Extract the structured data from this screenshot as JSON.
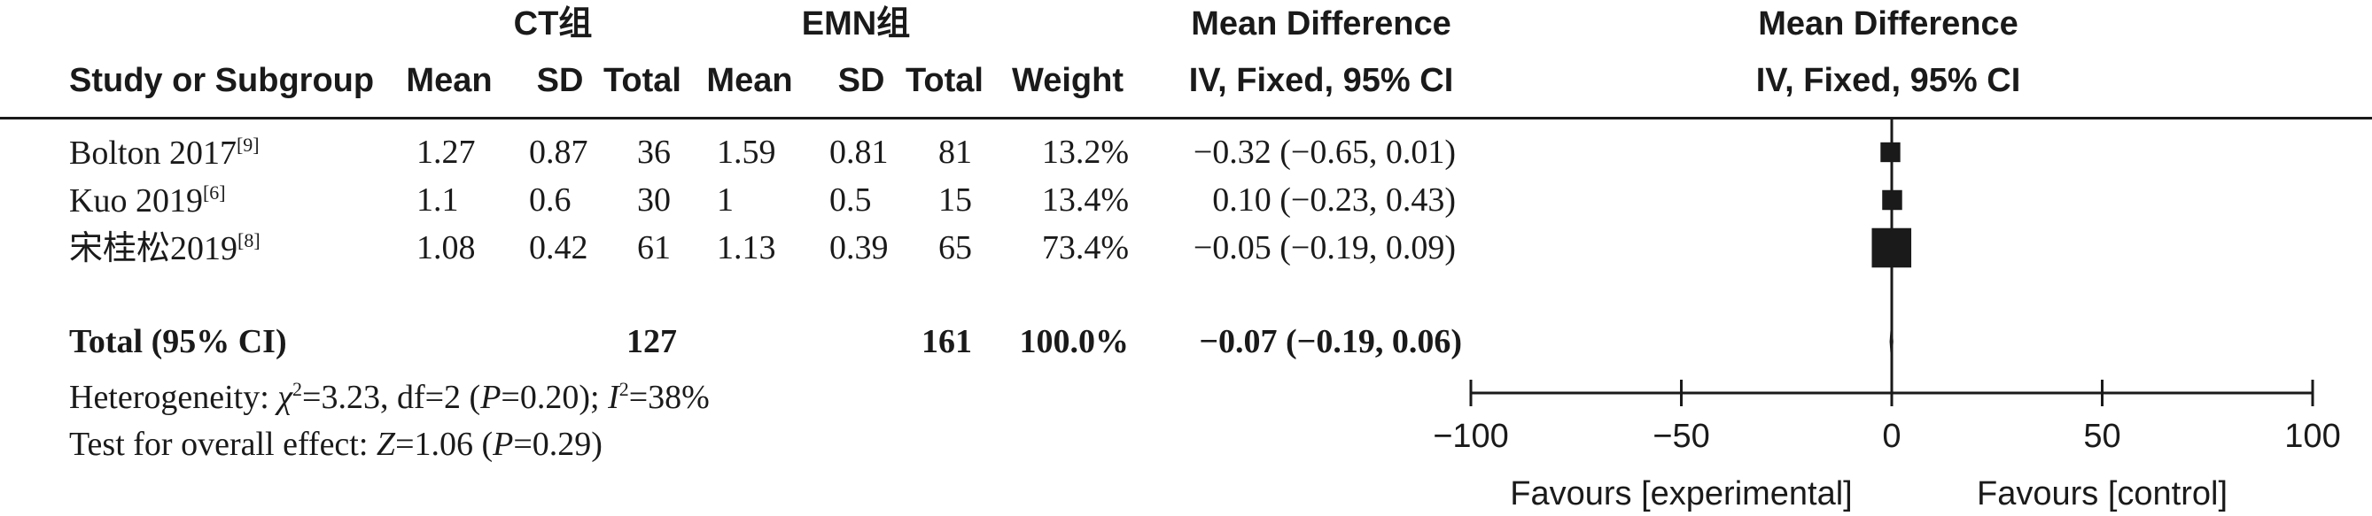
{
  "header": {
    "group1": "CT组",
    "group2": "EMN组",
    "effect_title": "Mean Difference",
    "effect_method": "IV, Fixed, 95% CI",
    "plot_title": "Mean Difference",
    "plot_method": "IV, Fixed, 95% CI",
    "col_study": "Study or Subgroup",
    "col_mean1": "Mean",
    "col_sd1": "SD",
    "col_total1": "Total",
    "col_mean2": "Mean",
    "col_sd2": "SD",
    "col_total2": "Total",
    "col_weight": "Weight"
  },
  "studies": [
    {
      "name": "Bolton 2017",
      "ref": "[9]",
      "mean1": "1.27",
      "sd1": "0.87",
      "total1": "36",
      "mean2": "1.59",
      "sd2": "0.81",
      "total2": "81",
      "weight": "13.2%",
      "ci": "−0.32 (−0.65, 0.01)"
    },
    {
      "name": "Kuo 2019",
      "ref": "[6]",
      "mean1": "1.1",
      "sd1": "0.6",
      "total1": "30",
      "mean2": "1",
      "sd2": "0.5",
      "total2": "15",
      "weight": "13.4%",
      "ci": "0.10 (−0.23, 0.43)"
    },
    {
      "name": "宋桂松2019",
      "ref": "[8]",
      "mean1": "1.08",
      "sd1": "0.42",
      "total1": "61",
      "mean2": "1.13",
      "sd2": "0.39",
      "total2": "65",
      "weight": "73.4%",
      "ci": "−0.05 (−0.19, 0.09)"
    }
  ],
  "total": {
    "label": "Total (95% CI)",
    "total1": "127",
    "total2": "161",
    "weight": "100.0%",
    "ci": "−0.07 (−0.19, 0.06)"
  },
  "heterogeneity": {
    "prefix": "Heterogeneity: ",
    "chi": "χ",
    "chi_sup": "2",
    "chi_rest": "=3.23, df=2 (",
    "p": "P",
    "p_rest": "=0.20); ",
    "i": "I",
    "i_sup": "2",
    "i_rest": "=38%"
  },
  "overall": {
    "prefix": "Test for overall effect: ",
    "z": "Z",
    "z_rest": "=1.06 (",
    "p": "P",
    "p_rest": "=0.29)"
  },
  "chart_data": {
    "type": "forest",
    "xlim": [
      -100,
      100
    ],
    "xticks": [
      -100,
      -50,
      0,
      50,
      100
    ],
    "xtick_labels": [
      "−100",
      "−50",
      "0",
      "50",
      "100"
    ],
    "xlabel_left": "Favours [experimental]",
    "xlabel_right": "Favours [control]",
    "null_line": 0,
    "studies": [
      {
        "name": "Bolton 2017",
        "md": -0.32,
        "lo": -0.65,
        "hi": 0.01,
        "weight": 13.2
      },
      {
        "name": "Kuo 2019",
        "md": 0.1,
        "lo": -0.23,
        "hi": 0.43,
        "weight": 13.4
      },
      {
        "name": "宋桂松2019",
        "md": -0.05,
        "lo": -0.19,
        "hi": 0.09,
        "weight": 73.4
      }
    ],
    "pooled": {
      "md": -0.07,
      "lo": -0.19,
      "hi": 0.06
    }
  }
}
